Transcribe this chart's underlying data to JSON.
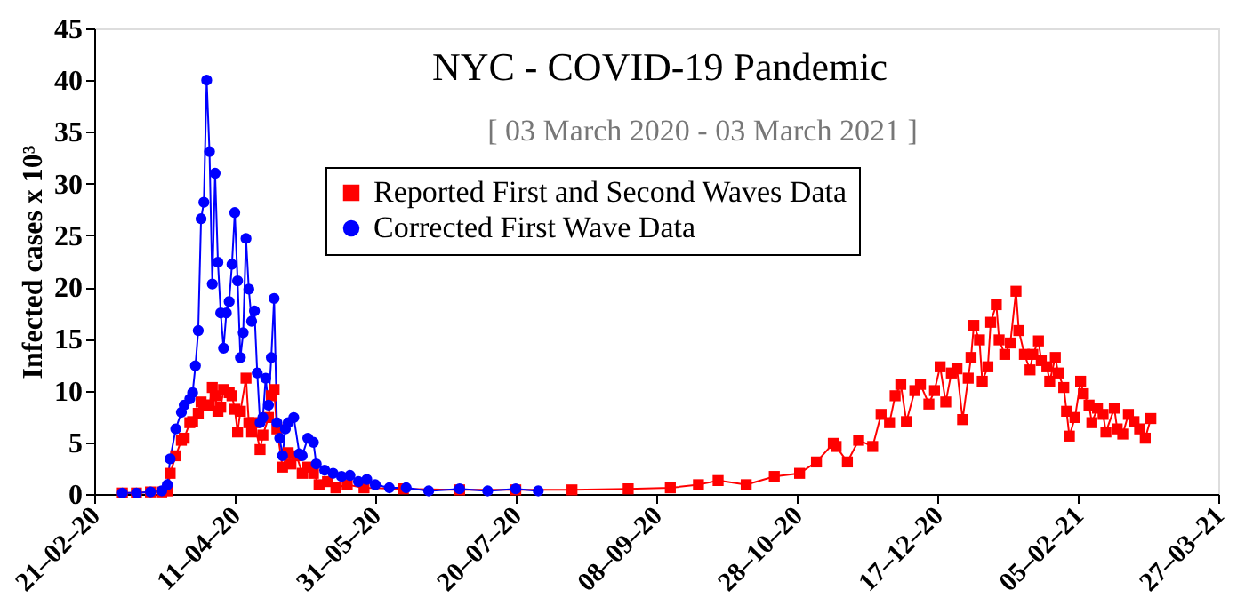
{
  "chart_data": {
    "type": "line",
    "title": "NYC - COVID-19 Pandemic",
    "subtitle": "[ 03 March 2020 - 03 March 2021 ]",
    "ylabel": "Infected cases x 10³",
    "xlim": [
      "2020-02-21",
      "2021-03-27"
    ],
    "xticks": [
      {
        "value": "2020-02-21",
        "label": "21–02–20"
      },
      {
        "value": "2020-04-11",
        "label": "11–04–20"
      },
      {
        "value": "2020-05-31",
        "label": "31–05–20"
      },
      {
        "value": "2020-07-20",
        "label": "20–07–20"
      },
      {
        "value": "2020-09-08",
        "label": "08–09–20"
      },
      {
        "value": "2020-10-28",
        "label": "28–10–20"
      },
      {
        "value": "2020-12-17",
        "label": "17–12–20"
      },
      {
        "value": "2021-02-05",
        "label": "05–02–21"
      },
      {
        "value": "2021-03-27",
        "label": "27–03–21"
      }
    ],
    "ylim": [
      0,
      45
    ],
    "yticks": [
      0,
      5,
      10,
      15,
      20,
      25,
      30,
      35,
      40,
      45
    ],
    "grid": false,
    "legend": "top",
    "line_style": "solid",
    "series": [
      {
        "name": "Reported First and Second Waves Data",
        "color": "#ff0000",
        "marker": "square",
        "x": [
          "2020-03-02",
          "2020-03-07",
          "2020-03-12",
          "2020-03-16",
          "2020-03-18",
          "2020-03-19",
          "2020-03-21",
          "2020-03-23",
          "2020-03-24",
          "2020-03-26",
          "2020-03-27",
          "2020-03-29",
          "2020-03-30",
          "2020-03-31",
          "2020-04-02",
          "2020-04-03",
          "2020-04-04",
          "2020-04-05",
          "2020-04-06",
          "2020-04-07",
          "2020-04-09",
          "2020-04-10",
          "2020-04-11",
          "2020-04-12",
          "2020-04-13",
          "2020-04-15",
          "2020-04-16",
          "2020-04-17",
          "2020-04-18",
          "2020-04-20",
          "2020-04-21",
          "2020-04-23",
          "2020-04-24",
          "2020-04-25",
          "2020-04-26",
          "2020-04-28",
          "2020-04-30",
          "2020-05-01",
          "2020-05-03",
          "2020-05-05",
          "2020-05-07",
          "2020-05-09",
          "2020-05-11",
          "2020-05-14",
          "2020-05-17",
          "2020-05-21",
          "2020-05-27",
          "2020-06-10",
          "2020-06-30",
          "2020-07-20",
          "2020-08-09",
          "2020-08-29",
          "2020-09-13",
          "2020-09-23",
          "2020-09-30",
          "2020-10-10",
          "2020-10-20",
          "2020-10-29",
          "2020-11-04",
          "2020-11-10",
          "2020-11-11",
          "2020-11-15",
          "2020-11-19",
          "2020-11-24",
          "2020-11-27",
          "2020-11-30",
          "2020-12-02",
          "2020-12-04",
          "2020-12-06",
          "2020-12-09",
          "2020-12-11",
          "2020-12-14",
          "2020-12-16",
          "2020-12-18",
          "2020-12-20",
          "2020-12-22",
          "2020-12-24",
          "2020-12-26",
          "2020-12-28",
          "2020-12-29",
          "2020-12-30",
          "2021-01-01",
          "2021-01-02",
          "2021-01-04",
          "2021-01-05",
          "2021-01-07",
          "2021-01-08",
          "2021-01-10",
          "2021-01-12",
          "2021-01-14",
          "2021-01-15",
          "2021-01-17",
          "2021-01-19",
          "2021-01-20",
          "2021-01-22",
          "2021-01-23",
          "2021-01-25",
          "2021-01-26",
          "2021-01-28",
          "2021-01-29",
          "2021-01-31",
          "2021-02-01",
          "2021-02-02",
          "2021-02-04",
          "2021-02-06",
          "2021-02-07",
          "2021-02-09",
          "2021-02-10",
          "2021-02-12",
          "2021-02-14",
          "2021-02-15",
          "2021-02-18",
          "2021-02-19",
          "2021-02-21",
          "2021-02-23",
          "2021-02-25",
          "2021-02-27",
          "2021-03-01",
          "2021-03-03"
        ],
        "values": [
          0.1,
          0.1,
          0.2,
          0.2,
          0.3,
          2.0,
          3.7,
          5.2,
          5.4,
          6.9,
          7.0,
          7.8,
          8.9,
          8.6,
          8.6,
          10.3,
          9.5,
          8.0,
          8.4,
          10.1,
          9.8,
          9.5,
          8.2,
          6.0,
          8.0,
          11.2,
          6.9,
          6.0,
          6.9,
          4.3,
          5.7,
          7.4,
          9.5,
          10.1,
          6.3,
          2.6,
          4.0,
          2.9,
          3.7,
          2.0,
          2.6,
          2.0,
          0.9,
          1.2,
          0.6,
          0.9,
          0.6,
          0.5,
          0.4,
          0.4,
          0.4,
          0.5,
          0.6,
          0.9,
          1.3,
          0.9,
          1.7,
          2.0,
          3.1,
          4.9,
          4.6,
          3.1,
          5.2,
          4.6,
          7.7,
          6.9,
          9.5,
          10.6,
          7.0,
          10.0,
          10.6,
          8.7,
          10.0,
          12.3,
          8.9,
          11.7,
          12.1,
          7.2,
          11.2,
          13.2,
          16.3,
          14.9,
          10.9,
          12.3,
          16.6,
          18.3,
          14.9,
          13.5,
          14.6,
          19.6,
          15.8,
          13.5,
          12.0,
          13.5,
          14.8,
          12.9,
          12.3,
          10.9,
          13.2,
          11.7,
          10.3,
          8.0,
          5.6,
          7.4,
          10.9,
          9.7,
          8.6,
          6.9,
          8.3,
          7.7,
          6.0,
          8.3,
          6.3,
          5.8,
          7.7,
          7.0,
          6.3,
          5.4,
          7.3
        ]
      },
      {
        "name": "Corrected First Wave Data",
        "color": "#0000ff",
        "marker": "circle",
        "x": [
          "2020-03-02",
          "2020-03-07",
          "2020-03-12",
          "2020-03-16",
          "2020-03-18",
          "2020-03-19",
          "2020-03-21",
          "2020-03-23",
          "2020-03-24",
          "2020-03-26",
          "2020-03-27",
          "2020-03-28",
          "2020-03-29",
          "2020-03-30",
          "2020-03-31",
          "2020-04-01",
          "2020-04-02",
          "2020-04-03",
          "2020-04-04",
          "2020-04-05",
          "2020-04-06",
          "2020-04-07",
          "2020-04-08",
          "2020-04-09",
          "2020-04-10",
          "2020-04-11",
          "2020-04-12",
          "2020-04-13",
          "2020-04-14",
          "2020-04-15",
          "2020-04-16",
          "2020-04-17",
          "2020-04-18",
          "2020-04-19",
          "2020-04-20",
          "2020-04-21",
          "2020-04-22",
          "2020-04-23",
          "2020-04-24",
          "2020-04-25",
          "2020-04-26",
          "2020-04-27",
          "2020-04-28",
          "2020-04-29",
          "2020-04-30",
          "2020-05-02",
          "2020-05-04",
          "2020-05-05",
          "2020-05-07",
          "2020-05-09",
          "2020-05-10",
          "2020-05-13",
          "2020-05-16",
          "2020-05-19",
          "2020-05-22",
          "2020-05-25",
          "2020-05-28",
          "2020-05-31",
          "2020-06-05",
          "2020-06-11",
          "2020-06-19",
          "2020-06-30",
          "2020-07-10",
          "2020-07-20",
          "2020-07-28"
        ],
        "values": [
          0.1,
          0.1,
          0.2,
          0.3,
          0.9,
          3.4,
          6.3,
          7.9,
          8.6,
          9.2,
          9.8,
          12.4,
          15.8,
          26.6,
          28.2,
          40.0,
          33.1,
          20.3,
          31.0,
          22.4,
          17.5,
          14.1,
          17.5,
          18.6,
          22.2,
          27.2,
          20.6,
          13.2,
          15.6,
          24.7,
          19.8,
          16.7,
          17.7,
          11.7,
          6.9,
          7.4,
          11.2,
          8.6,
          13.2,
          18.9,
          6.9,
          5.4,
          3.7,
          6.3,
          6.9,
          7.4,
          3.9,
          3.7,
          5.4,
          5.0,
          2.9,
          2.3,
          2.0,
          1.7,
          1.8,
          1.2,
          1.4,
          0.9,
          0.6,
          0.6,
          0.3,
          0.5,
          0.3,
          0.5,
          0.3
        ]
      }
    ]
  }
}
